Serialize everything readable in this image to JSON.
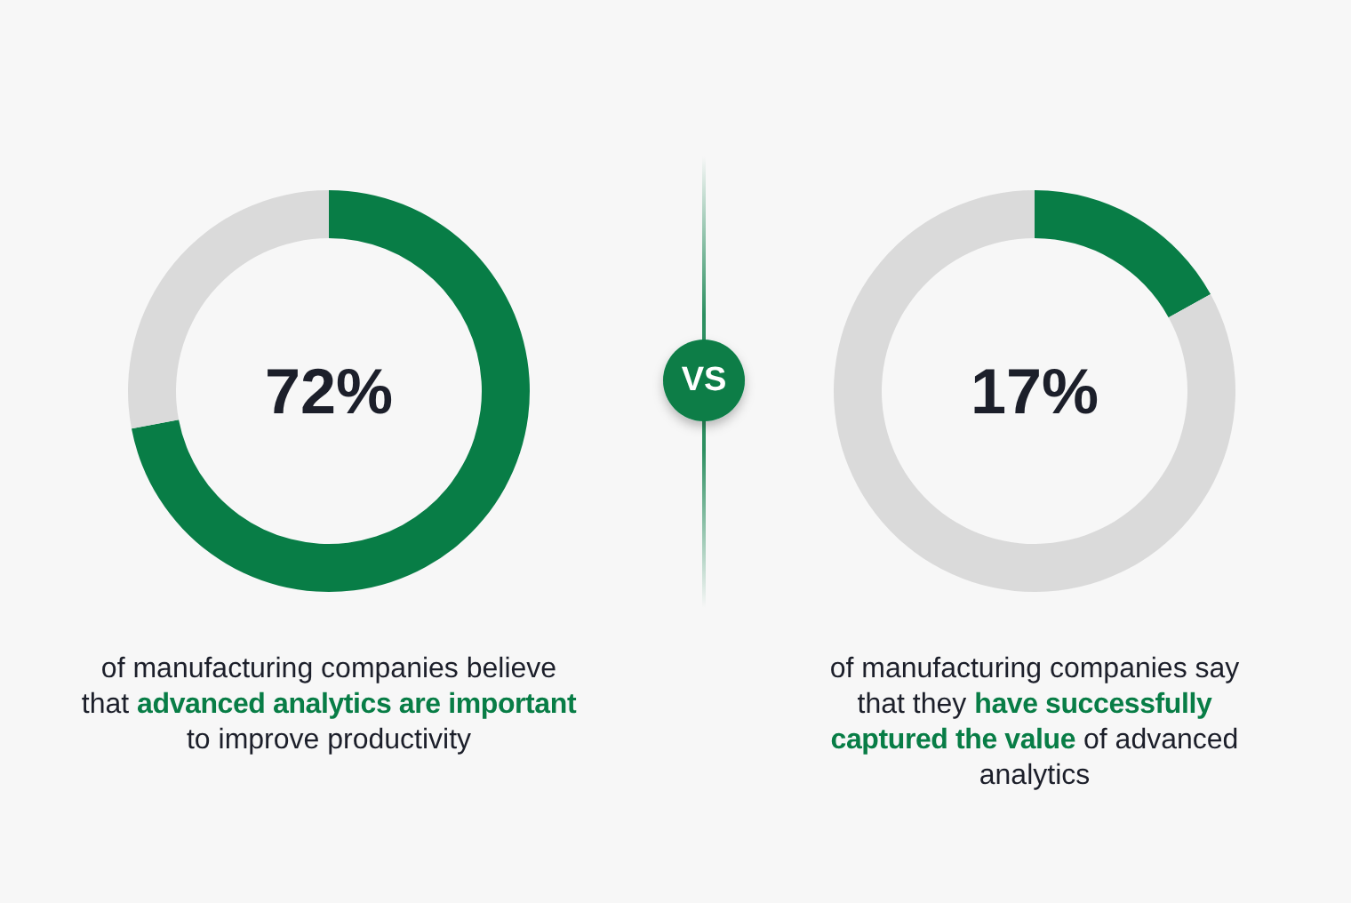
{
  "chart_data": [
    {
      "type": "donut",
      "categories": [
        null,
        null
      ],
      "values": [
        72,
        28
      ],
      "colors": [
        "#087d46",
        "#dadada"
      ],
      "value_labels": [
        "72%",
        null
      ],
      "annotations": [
        "of manufacturing companies believe",
        "that",
        "advanced analytics are important",
        "to improve productivity"
      ]
    },
    {
      "type": "other",
      "annotations": [
        "VS"
      ]
    },
    {
      "type": "donut",
      "categories": [
        null,
        null
      ],
      "values": [
        17,
        83
      ],
      "colors": [
        "#087d46",
        "#dadada"
      ],
      "value_labels": [
        "17%",
        null
      ],
      "annotations": [
        "of manufacturing companies say",
        "that they",
        "have successfully",
        "captured the value",
        "of advanced",
        "analytics"
      ]
    }
  ]
}
